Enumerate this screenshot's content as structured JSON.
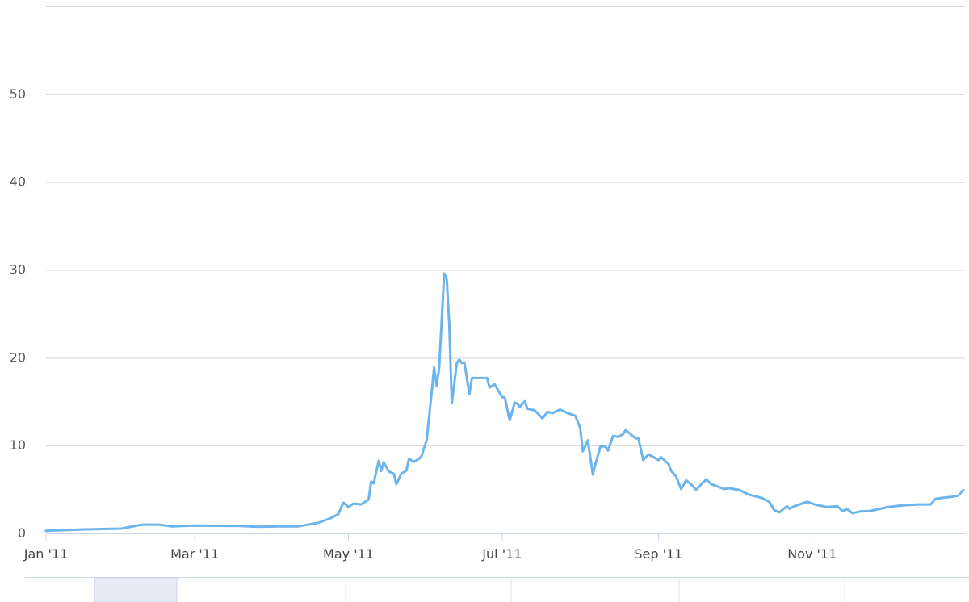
{
  "chart_data": {
    "type": "line",
    "title": "",
    "xlabel": "",
    "ylabel": "",
    "xlim": [
      "2011-01-01",
      "2011-12-31"
    ],
    "ylim": [
      0,
      60
    ],
    "grid": true,
    "line_color": "#6cb4ec",
    "y_ticks": [
      0,
      10,
      20,
      30,
      40,
      50
    ],
    "y_tick_labels": [
      "0",
      "10",
      "20",
      "30",
      "40",
      "50"
    ],
    "x_ticks": [
      "2011-01-01",
      "2011-03-01",
      "2011-05-01",
      "2011-07-01",
      "2011-09-01",
      "2011-11-01"
    ],
    "x_tick_labels": [
      "Jan '11",
      "Mar '11",
      "May '11",
      "Jul '11",
      "Sep '11",
      "Nov '11"
    ],
    "series": [
      {
        "points": [
          [
            "2011-01-01",
            0.3
          ],
          [
            "2011-01-15",
            0.45
          ],
          [
            "2011-01-31",
            0.55
          ],
          [
            "2011-02-08",
            1.0
          ],
          [
            "2011-02-15",
            1.0
          ],
          [
            "2011-02-20",
            0.8
          ],
          [
            "2011-03-01",
            0.9
          ],
          [
            "2011-03-19",
            0.85
          ],
          [
            "2011-03-26",
            0.75
          ],
          [
            "2011-04-04",
            0.8
          ],
          [
            "2011-04-11",
            0.8
          ],
          [
            "2011-04-19",
            1.2
          ],
          [
            "2011-04-24",
            1.75
          ],
          [
            "2011-04-27",
            2.2
          ],
          [
            "2011-04-29",
            3.5
          ],
          [
            "2011-05-01",
            3.0
          ],
          [
            "2011-05-03",
            3.4
          ],
          [
            "2011-05-06",
            3.3
          ],
          [
            "2011-05-09",
            3.85
          ],
          [
            "2011-05-10",
            5.9
          ],
          [
            "2011-05-11",
            5.7
          ],
          [
            "2011-05-13",
            8.25
          ],
          [
            "2011-05-14",
            7.1
          ],
          [
            "2011-05-15",
            8.1
          ],
          [
            "2011-05-17",
            7.05
          ],
          [
            "2011-05-19",
            6.8
          ],
          [
            "2011-05-20",
            5.6
          ],
          [
            "2011-05-22",
            6.8
          ],
          [
            "2011-05-24",
            7.15
          ],
          [
            "2011-05-25",
            8.5
          ],
          [
            "2011-05-27",
            8.15
          ],
          [
            "2011-05-29",
            8.5
          ],
          [
            "2011-05-30",
            8.8
          ],
          [
            "2011-06-01",
            10.6
          ],
          [
            "2011-06-03",
            16.0
          ],
          [
            "2011-06-04",
            18.9
          ],
          [
            "2011-06-05",
            16.8
          ],
          [
            "2011-06-06",
            18.9
          ],
          [
            "2011-06-08",
            29.6
          ],
          [
            "2011-06-09",
            29.0
          ],
          [
            "2011-06-10",
            24.0
          ],
          [
            "2011-06-11",
            14.8
          ],
          [
            "2011-06-13",
            19.4
          ],
          [
            "2011-06-14",
            19.8
          ],
          [
            "2011-06-15",
            19.4
          ],
          [
            "2011-06-16",
            19.45
          ],
          [
            "2011-06-18",
            15.9
          ],
          [
            "2011-06-19",
            17.7
          ],
          [
            "2011-06-25",
            17.7
          ],
          [
            "2011-06-26",
            16.6
          ],
          [
            "2011-06-28",
            17.0
          ],
          [
            "2011-07-01",
            15.5
          ],
          [
            "2011-07-02",
            15.5
          ],
          [
            "2011-07-04",
            12.9
          ],
          [
            "2011-07-06",
            14.9
          ],
          [
            "2011-07-07",
            14.8
          ],
          [
            "2011-07-08",
            14.4
          ],
          [
            "2011-07-10",
            15.05
          ],
          [
            "2011-07-11",
            14.2
          ],
          [
            "2011-07-14",
            14.0
          ],
          [
            "2011-07-17",
            13.1
          ],
          [
            "2011-07-19",
            13.85
          ],
          [
            "2011-07-21",
            13.7
          ],
          [
            "2011-07-24",
            14.1
          ],
          [
            "2011-07-26",
            13.85
          ],
          [
            "2011-07-27",
            13.7
          ],
          [
            "2011-07-30",
            13.4
          ],
          [
            "2011-08-01",
            12.0
          ],
          [
            "2011-08-02",
            9.35
          ],
          [
            "2011-08-04",
            10.6
          ],
          [
            "2011-08-06",
            6.7
          ],
          [
            "2011-08-07",
            7.9
          ],
          [
            "2011-08-09",
            9.9
          ],
          [
            "2011-08-11",
            9.9
          ],
          [
            "2011-08-12",
            9.45
          ],
          [
            "2011-08-14",
            11.1
          ],
          [
            "2011-08-16",
            11.0
          ],
          [
            "2011-08-18",
            11.3
          ],
          [
            "2011-08-19",
            11.75
          ],
          [
            "2011-08-21",
            11.3
          ],
          [
            "2011-08-23",
            10.8
          ],
          [
            "2011-08-24",
            10.9
          ],
          [
            "2011-08-26",
            8.35
          ],
          [
            "2011-08-28",
            9.0
          ],
          [
            "2011-08-30",
            8.7
          ],
          [
            "2011-09-01",
            8.35
          ],
          [
            "2011-09-02",
            8.7
          ],
          [
            "2011-09-05",
            7.9
          ],
          [
            "2011-09-06",
            7.15
          ],
          [
            "2011-09-08",
            6.5
          ],
          [
            "2011-09-10",
            5.05
          ],
          [
            "2011-09-12",
            6.05
          ],
          [
            "2011-09-14",
            5.6
          ],
          [
            "2011-09-16",
            4.95
          ],
          [
            "2011-09-18",
            5.6
          ],
          [
            "2011-09-20",
            6.15
          ],
          [
            "2011-09-22",
            5.6
          ],
          [
            "2011-09-24",
            5.4
          ],
          [
            "2011-09-27",
            5.05
          ],
          [
            "2011-09-29",
            5.15
          ],
          [
            "2011-10-03",
            4.95
          ],
          [
            "2011-10-07",
            4.4
          ],
          [
            "2011-10-12",
            4.05
          ],
          [
            "2011-10-15",
            3.6
          ],
          [
            "2011-10-17",
            2.65
          ],
          [
            "2011-10-19",
            2.4
          ],
          [
            "2011-10-22",
            3.1
          ],
          [
            "2011-10-23",
            2.8
          ],
          [
            "2011-10-25",
            3.1
          ],
          [
            "2011-10-27",
            3.3
          ],
          [
            "2011-10-30",
            3.6
          ],
          [
            "2011-11-02",
            3.3
          ],
          [
            "2011-11-07",
            3.0
          ],
          [
            "2011-11-11",
            3.1
          ],
          [
            "2011-11-13",
            2.55
          ],
          [
            "2011-11-15",
            2.75
          ],
          [
            "2011-11-17",
            2.3
          ],
          [
            "2011-11-20",
            2.5
          ],
          [
            "2011-11-24",
            2.55
          ],
          [
            "2011-11-27",
            2.75
          ],
          [
            "2011-12-01",
            3.0
          ],
          [
            "2011-12-04",
            3.1
          ],
          [
            "2011-12-07",
            3.2
          ],
          [
            "2011-12-13",
            3.3
          ],
          [
            "2011-12-18",
            3.3
          ],
          [
            "2011-12-20",
            3.95
          ],
          [
            "2011-12-23",
            4.05
          ],
          [
            "2011-12-26",
            4.15
          ],
          [
            "2011-12-29",
            4.3
          ],
          [
            "2011-12-31",
            4.95
          ]
        ]
      }
    ]
  }
}
